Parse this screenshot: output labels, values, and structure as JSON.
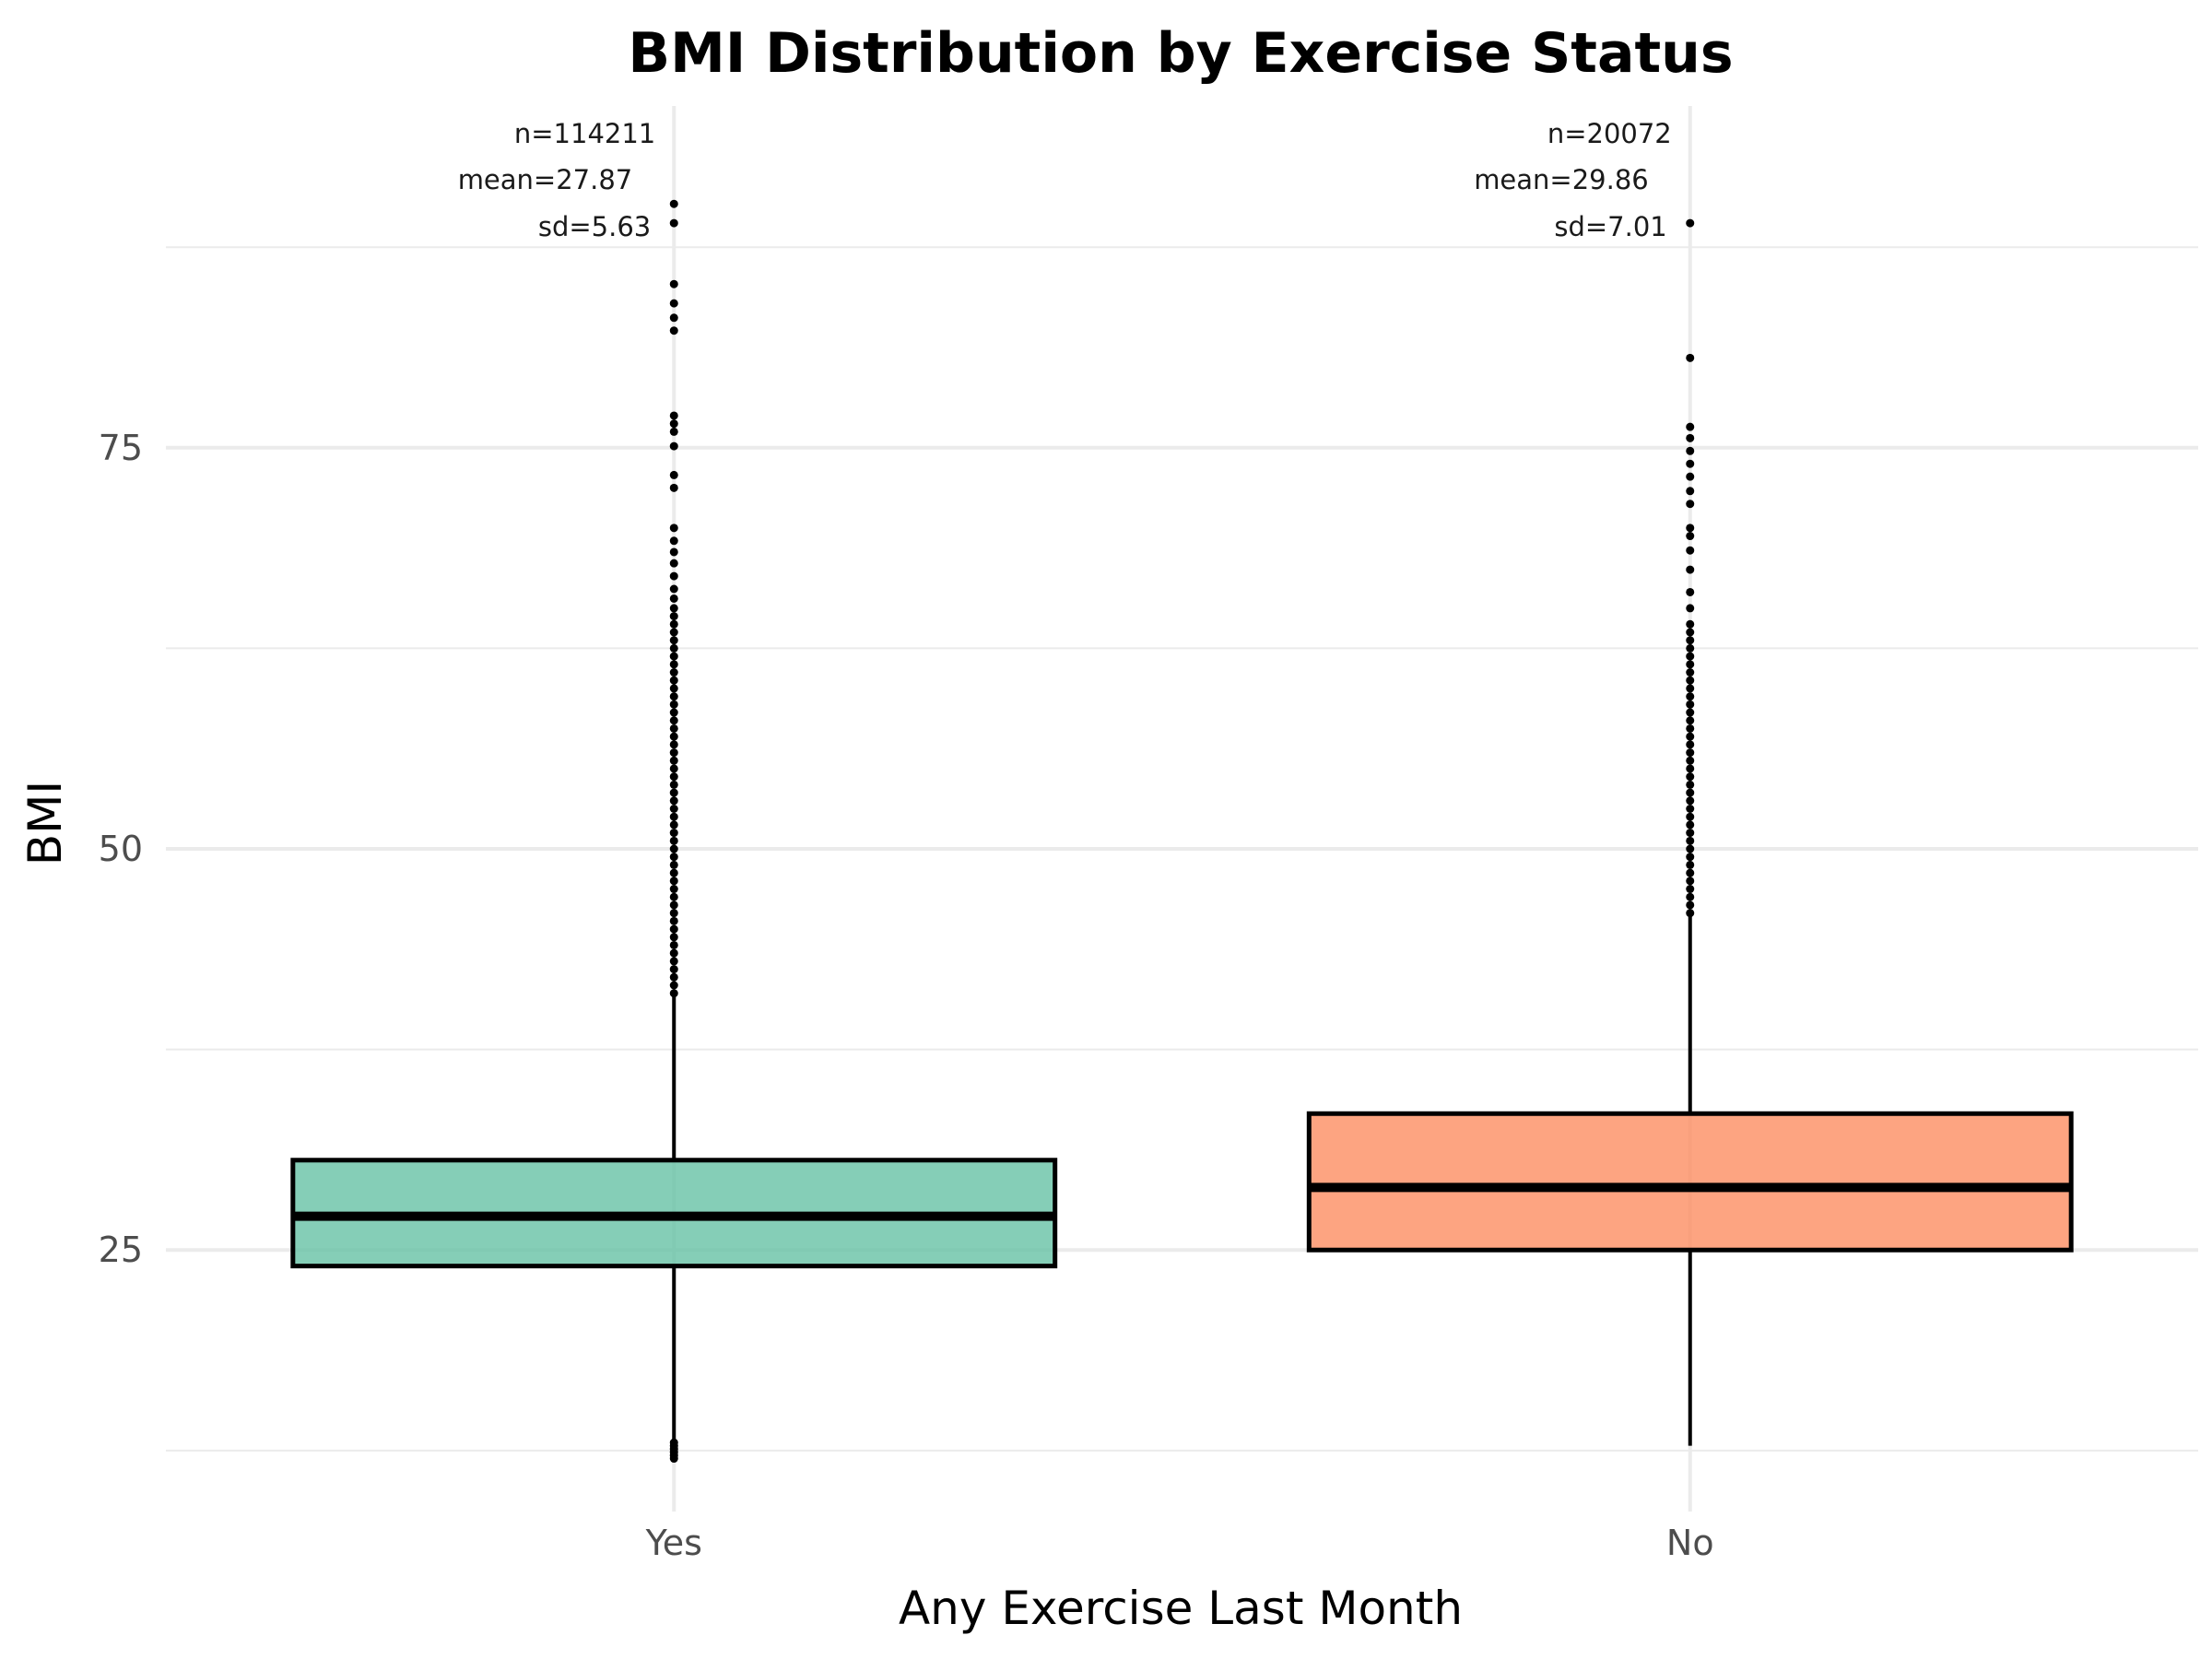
{
  "chart_data": {
    "type": "box",
    "title": "BMI Distribution by Exercise Status",
    "xlabel": "Any Exercise Last Month",
    "ylabel": "BMI",
    "ylim": [
      8.7,
      96.3
    ],
    "yticks": [
      25,
      50,
      75
    ],
    "grid": true,
    "legend": "none",
    "categories": [
      "Yes",
      "No"
    ],
    "series": [
      {
        "category": "Yes",
        "color": "#66c2a5",
        "q1": 24.0,
        "median": 27.1,
        "q3": 30.6,
        "whisker_low": 12.3,
        "whisker_high": 40.9,
        "outliers": [
          12.0,
          12.2,
          12.4,
          12.6,
          12.8,
          13.0,
          41.0,
          41.5,
          42.0,
          42.5,
          43.0,
          43.5,
          44.0,
          44.5,
          45.0,
          45.5,
          46.0,
          46.5,
          47.0,
          47.5,
          48.0,
          48.5,
          49.0,
          49.5,
          50.0,
          50.5,
          51.0,
          51.5,
          52.0,
          52.5,
          53.0,
          53.5,
          54.0,
          54.5,
          55.0,
          55.5,
          56.0,
          56.5,
          57.0,
          57.5,
          58.0,
          58.5,
          59.0,
          59.5,
          60.0,
          60.5,
          61.0,
          61.5,
          62.0,
          62.5,
          63.0,
          63.5,
          64.0,
          64.5,
          65.0,
          65.6,
          66.2,
          67.0,
          67.8,
          68.5,
          69.2,
          70.0,
          72.5,
          73.3,
          75.1,
          76.0,
          76.5,
          77.0,
          82.3,
          83.1,
          84.0,
          85.2,
          89.0,
          90.2
        ],
        "annotation": {
          "n": "n=114211",
          "mean": "mean=27.87",
          "sd": "sd=5.63"
        }
      },
      {
        "category": "No",
        "color": "#fc8d62",
        "q1": 25.0,
        "median": 28.9,
        "q3": 33.5,
        "whisker_low": 12.8,
        "whisker_high": 45.9,
        "outliers": [
          46.0,
          46.5,
          47.0,
          47.5,
          48.0,
          48.5,
          49.0,
          49.5,
          50.0,
          50.5,
          51.0,
          51.5,
          52.0,
          52.5,
          53.0,
          53.5,
          54.0,
          54.5,
          55.0,
          55.5,
          56.0,
          56.5,
          57.0,
          57.5,
          58.0,
          58.5,
          59.0,
          59.5,
          60.0,
          60.5,
          61.0,
          61.5,
          62.0,
          62.5,
          63.0,
          63.5,
          64.0,
          65.0,
          66.0,
          67.4,
          68.6,
          69.5,
          70.0,
          71.5,
          72.3,
          73.2,
          74.0,
          74.8,
          75.6,
          76.3,
          80.6,
          89.0
        ],
        "annotation": {
          "n": "n=20072",
          "mean": "mean=29.86",
          "sd": "sd=7.01"
        }
      }
    ]
  }
}
